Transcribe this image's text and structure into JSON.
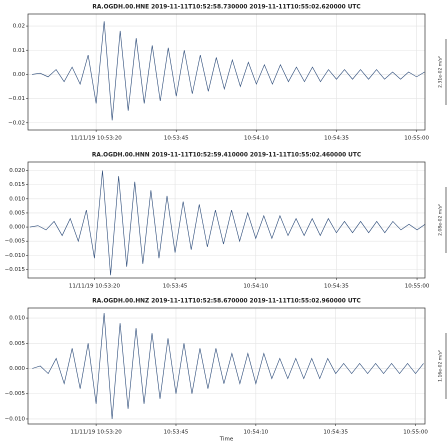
{
  "chart_data": [
    {
      "type": "line",
      "title": "RA.OGDH.00.HNE 2019-11-11T10:52:58.730000 2019-11-11T10:55:02.620000 UTC",
      "scale_label": "2.31e-02 m/s²",
      "color": "#2b4a78",
      "grid": true,
      "xlim": [
        58.73,
        182.62
      ],
      "ylim": [
        -0.023,
        0.025
      ],
      "xticks": [
        {
          "value": 80,
          "label": "11/11/19 10:53:20"
        },
        {
          "value": 105,
          "label": "10:53:45"
        },
        {
          "value": 130,
          "label": "10:54:10"
        },
        {
          "value": 155,
          "label": "10:54:35"
        },
        {
          "value": 180,
          "label": "10:55:00"
        }
      ],
      "yticks": [
        {
          "value": -0.02,
          "label": "−0.02"
        },
        {
          "value": -0.01,
          "label": "−0.01"
        },
        {
          "value": 0,
          "label": "0.00"
        },
        {
          "value": 0.01,
          "label": "0.01"
        },
        {
          "value": 0.02,
          "label": "0.02"
        }
      ],
      "x": [
        60,
        62.5,
        65,
        67.5,
        70,
        72.5,
        75,
        77.5,
        80,
        82.5,
        85,
        87.5,
        90,
        92.5,
        95,
        97.5,
        100,
        102.5,
        105,
        107.5,
        110,
        112.5,
        115,
        117.5,
        120,
        122.5,
        125,
        127.5,
        130,
        132.5,
        135,
        137.5,
        140,
        142.5,
        145,
        147.5,
        150,
        152.5,
        155,
        157.5,
        160,
        162.5,
        165,
        167.5,
        170,
        172.5,
        175,
        177.5,
        180,
        182.5
      ],
      "values": [
        0,
        0.0005,
        -0.001,
        0.002,
        -0.003,
        0.003,
        -0.004,
        0.008,
        -0.012,
        0.022,
        -0.019,
        0.018,
        -0.015,
        0.015,
        -0.012,
        0.012,
        -0.011,
        0.011,
        -0.009,
        0.01,
        -0.008,
        0.008,
        -0.007,
        0.007,
        -0.006,
        0.006,
        -0.005,
        0.005,
        -0.004,
        0.004,
        -0.004,
        0.004,
        -0.003,
        0.003,
        -0.003,
        0.003,
        -0.003,
        0.002,
        -0.002,
        0.002,
        -0.002,
        0.002,
        -0.002,
        0.002,
        -0.002,
        0.001,
        -0.002,
        0.001,
        -0.001,
        0.001
      ]
    },
    {
      "type": "line",
      "title": "RA.OGDH.00.HNN 2019-11-11T10:52:59.410000 2019-11-11T10:55:02.460000 UTC",
      "scale_label": "2.08e-02 m/s²",
      "color": "#2b4a78",
      "grid": true,
      "xlim": [
        59.41,
        182.46
      ],
      "ylim": [
        -0.018,
        0.023
      ],
      "xticks": [
        {
          "value": 80,
          "label": "11/11/19 10:53:20"
        },
        {
          "value": 105,
          "label": "10:53:45"
        },
        {
          "value": 130,
          "label": "10:54:10"
        },
        {
          "value": 155,
          "label": "10:54:35"
        },
        {
          "value": 180,
          "label": "10:55:00"
        }
      ],
      "yticks": [
        {
          "value": -0.015,
          "label": "−0.015"
        },
        {
          "value": -0.01,
          "label": "−0.010"
        },
        {
          "value": -0.005,
          "label": "−0.005"
        },
        {
          "value": 0,
          "label": "0.000"
        },
        {
          "value": 0.005,
          "label": "0.005"
        },
        {
          "value": 0.01,
          "label": "0.010"
        },
        {
          "value": 0.015,
          "label": "0.015"
        },
        {
          "value": 0.02,
          "label": "0.020"
        }
      ],
      "x": [
        60,
        62.5,
        65,
        67.5,
        70,
        72.5,
        75,
        77.5,
        80,
        82.5,
        85,
        87.5,
        90,
        92.5,
        95,
        97.5,
        100,
        102.5,
        105,
        107.5,
        110,
        112.5,
        115,
        117.5,
        120,
        122.5,
        125,
        127.5,
        130,
        132.5,
        135,
        137.5,
        140,
        142.5,
        145,
        147.5,
        150,
        152.5,
        155,
        157.5,
        160,
        162.5,
        165,
        167.5,
        170,
        172.5,
        175,
        177.5,
        180,
        182.5
      ],
      "values": [
        0,
        0.0005,
        -0.001,
        0.002,
        -0.003,
        0.003,
        -0.005,
        0.006,
        -0.011,
        0.02,
        -0.017,
        0.018,
        -0.014,
        0.016,
        -0.013,
        0.013,
        -0.011,
        0.011,
        -0.009,
        0.009,
        -0.008,
        0.008,
        -0.007,
        0.006,
        -0.006,
        0.006,
        -0.005,
        0.005,
        -0.004,
        0.004,
        -0.004,
        0.004,
        -0.003,
        0.003,
        -0.003,
        0.003,
        -0.003,
        0.003,
        -0.002,
        0.002,
        -0.002,
        0.002,
        -0.002,
        0.002,
        -0.002,
        0.002,
        -0.001,
        0.001,
        -0.001,
        0.001
      ]
    },
    {
      "type": "line",
      "title": "RA.OGDH.00.HNZ 2019-11-11T10:52:58.670000 2019-11-11T10:55:02.960000 UTC",
      "scale_label": "1.16e-02 m/s²",
      "color": "#2b4a78",
      "grid": true,
      "xlabel": "Time",
      "xlim": [
        58.67,
        182.96
      ],
      "ylim": [
        -0.011,
        0.012
      ],
      "xticks": [
        {
          "value": 80,
          "label": "11/11/19 10:53:20"
        },
        {
          "value": 105,
          "label": "10:53:45"
        },
        {
          "value": 130,
          "label": "10:54:10"
        },
        {
          "value": 155,
          "label": "10:54:35"
        },
        {
          "value": 180,
          "label": "10:55:00"
        }
      ],
      "yticks": [
        {
          "value": -0.01,
          "label": "−0.010"
        },
        {
          "value": -0.005,
          "label": "−0.005"
        },
        {
          "value": 0,
          "label": "0.000"
        },
        {
          "value": 0.005,
          "label": "0.005"
        },
        {
          "value": 0.01,
          "label": "0.010"
        }
      ],
      "x": [
        60,
        62.5,
        65,
        67.5,
        70,
        72.5,
        75,
        77.5,
        80,
        82.5,
        85,
        87.5,
        90,
        92.5,
        95,
        97.5,
        100,
        102.5,
        105,
        107.5,
        110,
        112.5,
        115,
        117.5,
        120,
        122.5,
        125,
        127.5,
        130,
        132.5,
        135,
        137.5,
        140,
        142.5,
        145,
        147.5,
        150,
        152.5,
        155,
        157.5,
        160,
        162.5,
        165,
        167.5,
        170,
        172.5,
        175,
        177.5,
        180,
        182.5
      ],
      "values": [
        0,
        0.0005,
        -0.001,
        0.002,
        -0.003,
        0.004,
        -0.004,
        0.005,
        -0.007,
        0.011,
        -0.01,
        0.009,
        -0.008,
        0.008,
        -0.007,
        0.007,
        -0.006,
        0.006,
        -0.005,
        0.005,
        -0.005,
        0.004,
        -0.004,
        0.004,
        -0.003,
        0.003,
        -0.003,
        0.003,
        -0.003,
        0.003,
        -0.002,
        0.002,
        -0.002,
        0.002,
        -0.002,
        0.002,
        -0.002,
        0.002,
        -0.001,
        0.001,
        -0.001,
        0.001,
        -0.001,
        0.001,
        -0.001,
        0.001,
        -0.001,
        0.001,
        -0.001,
        0.001
      ]
    }
  ]
}
